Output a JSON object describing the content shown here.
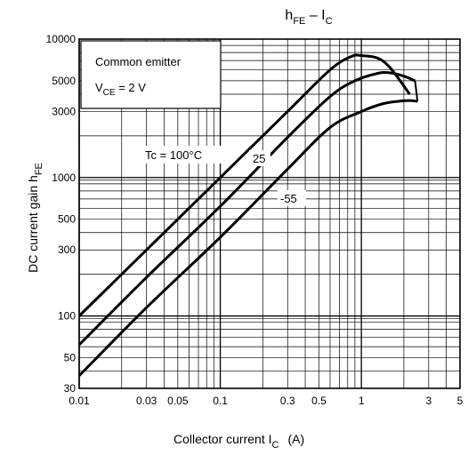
{
  "chart_data": {
    "type": "line",
    "title": {
      "main": "h",
      "sub1": "FE",
      "dash": " – I",
      "sub2": "C"
    },
    "xlabel": {
      "text": "Collector current   I",
      "sub": "C",
      "unit": "(A)"
    },
    "ylabel": {
      "text": "DC current gain   h",
      "sub": "FE"
    },
    "x_scale": "log",
    "y_scale": "log",
    "xlim": [
      0.01,
      5
    ],
    "ylim": [
      30,
      10000
    ],
    "grid": true,
    "x_ticks": [
      {
        "v": 0.01,
        "label": "0.01"
      },
      {
        "v": 0.03,
        "label": "0.03"
      },
      {
        "v": 0.05,
        "label": "0.05"
      },
      {
        "v": 0.1,
        "label": "0.1"
      },
      {
        "v": 0.3,
        "label": "0.3"
      },
      {
        "v": 0.5,
        "label": "0.5"
      },
      {
        "v": 1,
        "label": "1"
      },
      {
        "v": 3,
        "label": "3"
      },
      {
        "v": 5,
        "label": "5"
      }
    ],
    "y_ticks": [
      {
        "v": 30,
        "label": "30"
      },
      {
        "v": 50,
        "label": "50"
      },
      {
        "v": 100,
        "label": "100"
      },
      {
        "v": 300,
        "label": "300"
      },
      {
        "v": 500,
        "label": "500"
      },
      {
        "v": 1000,
        "label": "1000"
      },
      {
        "v": 3000,
        "label": "3000"
      },
      {
        "v": 5000,
        "label": "5000"
      },
      {
        "v": 10000,
        "label": "10000"
      }
    ],
    "legend_box": {
      "line1": "Common emitter",
      "line2_main": "V",
      "line2_sub": "CE",
      "line2_rest": " = 2 V"
    },
    "series": [
      {
        "name": "Tc = 100°C",
        "points": [
          [
            0.01,
            100
          ],
          [
            0.03,
            300
          ],
          [
            0.1,
            1000
          ],
          [
            0.3,
            3000
          ],
          [
            0.6,
            6000
          ],
          [
            0.85,
            7500
          ],
          [
            1.0,
            7600
          ],
          [
            1.3,
            7300
          ],
          [
            1.6,
            6200
          ],
          [
            2.2,
            4000
          ]
        ]
      },
      {
        "name": "25",
        "points": [
          [
            0.01,
            62
          ],
          [
            0.03,
            190
          ],
          [
            0.1,
            620
          ],
          [
            0.3,
            1950
          ],
          [
            0.6,
            3850
          ],
          [
            0.9,
            5000
          ],
          [
            1.3,
            5650
          ],
          [
            1.6,
            5700
          ],
          [
            2.0,
            5400
          ],
          [
            2.4,
            5000
          ]
        ]
      },
      {
        "name": "-55",
        "points": [
          [
            0.01,
            37
          ],
          [
            0.03,
            115
          ],
          [
            0.1,
            370
          ],
          [
            0.3,
            1150
          ],
          [
            0.6,
            2300
          ],
          [
            1.0,
            3000
          ],
          [
            1.4,
            3400
          ],
          [
            1.8,
            3550
          ],
          [
            2.2,
            3600
          ],
          [
            2.5,
            3550
          ]
        ]
      }
    ],
    "annotations": [
      {
        "series": "Tc = 100°C",
        "text": "Tc = 100°C"
      },
      {
        "series": "25",
        "text": "25"
      },
      {
        "series": "-55",
        "text": "-55"
      }
    ]
  }
}
